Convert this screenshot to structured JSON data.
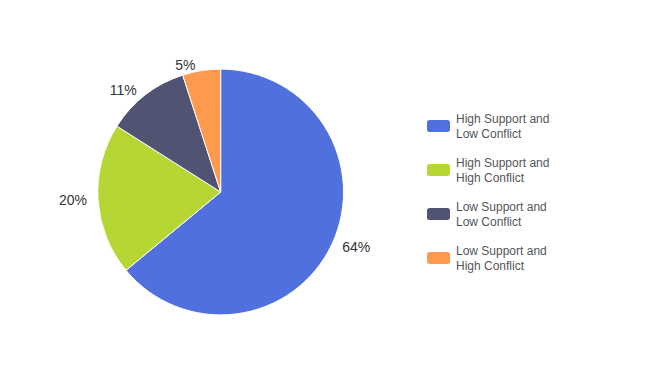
{
  "chart_data": {
    "type": "pie",
    "categories": [
      "High Support and\nLow Conflict",
      "High Support and\nHigh Conflict",
      "Low Support and\nLow Conflict",
      "Low Support and\nHigh Conflict"
    ],
    "values": [
      64,
      20,
      11,
      5
    ],
    "value_labels": [
      "64%",
      "20%",
      "11%",
      "5%"
    ],
    "data_labels": true,
    "legend": "right"
  }
}
